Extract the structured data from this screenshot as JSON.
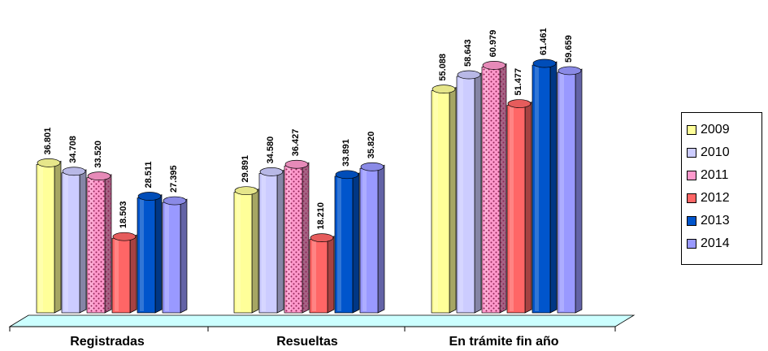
{
  "chart_data": {
    "type": "bar",
    "categories": [
      "Registradas",
      "Resueltas",
      "En trámite fin año"
    ],
    "series": [
      {
        "name": "2009",
        "values": [
          36801,
          29891,
          55088
        ],
        "labels": [
          "36.801",
          "29.891",
          "55.088"
        ],
        "color": "#FFFF99",
        "pattern": "none"
      },
      {
        "name": "2010",
        "values": [
          34708,
          34580,
          58643
        ],
        "labels": [
          "34.708",
          "34.580",
          "58.643"
        ],
        "color": "#CCCCFF",
        "pattern": "none"
      },
      {
        "name": "2011",
        "values": [
          33520,
          36427,
          60979
        ],
        "labels": [
          "33.520",
          "36.427",
          "60.979"
        ],
        "color": "#FF99CC",
        "pattern": "dots"
      },
      {
        "name": "2012",
        "values": [
          18503,
          18210,
          51477
        ],
        "labels": [
          "18.503",
          "18.210",
          "51.477"
        ],
        "color": "#FF6666",
        "pattern": "none"
      },
      {
        "name": "2013",
        "values": [
          28511,
          33891,
          61461
        ],
        "labels": [
          "28.511",
          "33.891",
          "61.461"
        ],
        "color": "#0055CC",
        "pattern": "none"
      },
      {
        "name": "2014",
        "values": [
          27395,
          35820,
          59659
        ],
        "labels": [
          "27.395",
          "35.820",
          "59.659"
        ],
        "color": "#9999FF",
        "pattern": "none"
      }
    ],
    "title": "",
    "xlabel": "",
    "ylabel": "",
    "ylim": [
      0,
      65000
    ],
    "grid": false,
    "legend": "right",
    "floor_color": "#CCFFFF"
  }
}
